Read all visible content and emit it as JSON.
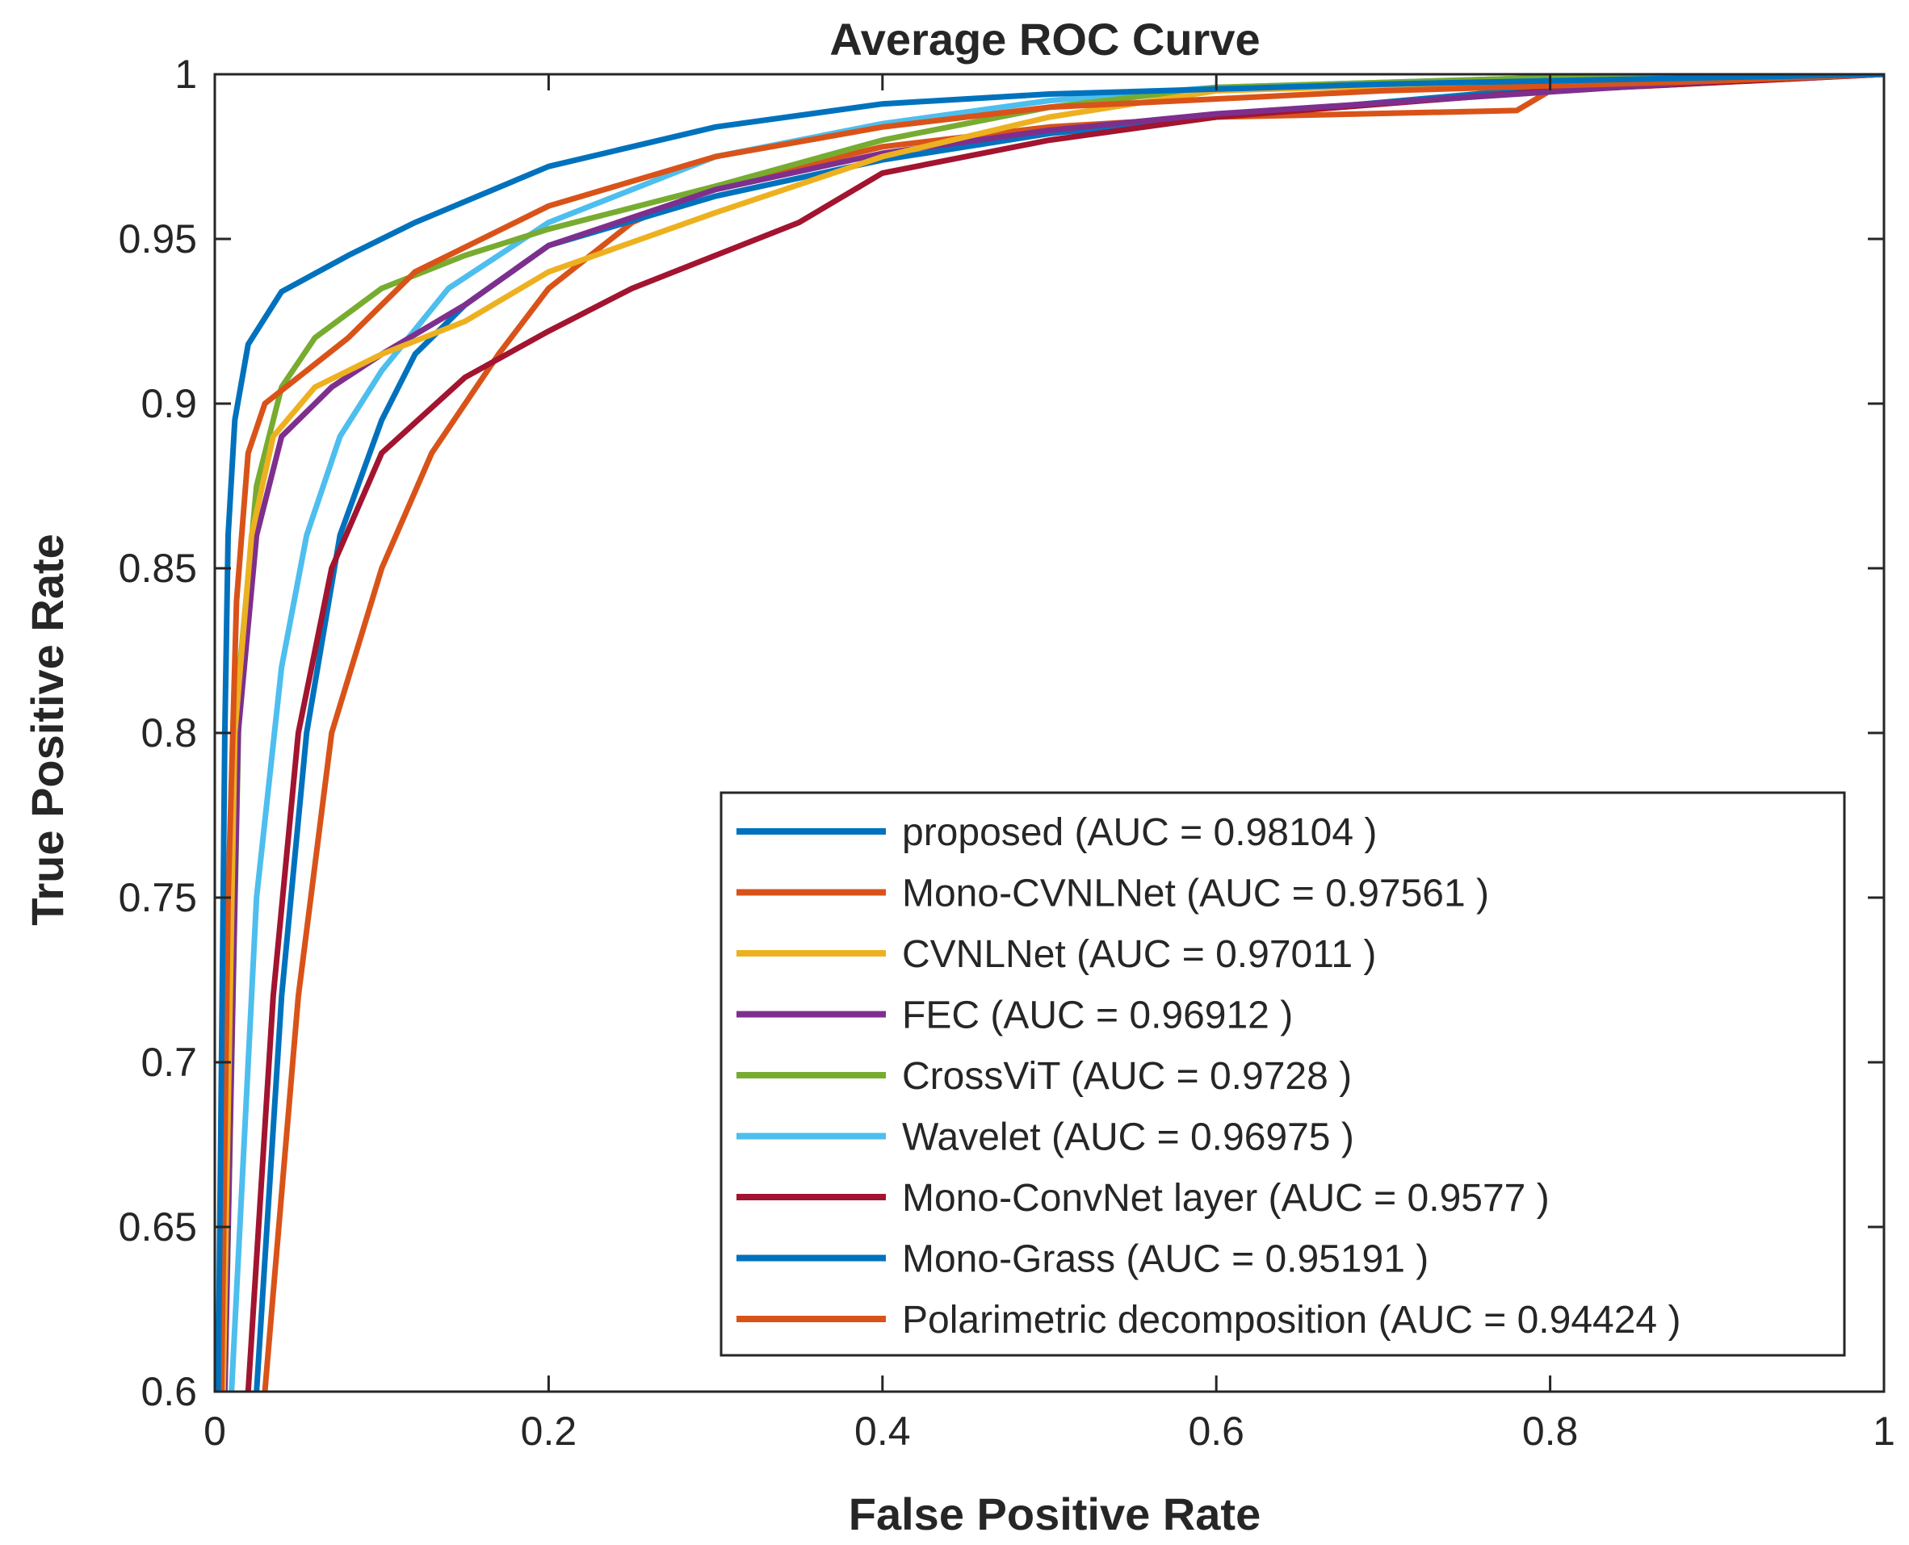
{
  "chart_data": {
    "type": "line",
    "title": "Average ROC Curve",
    "xlabel": "False Positive Rate",
    "ylabel": "True Positive Rate",
    "xlim": [
      0,
      1
    ],
    "ylim": [
      0.6,
      1
    ],
    "xticks": [
      "0",
      "0.2",
      "0.4",
      "0.6",
      "0.8",
      "1"
    ],
    "yticks": [
      "0.6",
      "0.65",
      "0.7",
      "0.75",
      "0.8",
      "0.85",
      "0.9",
      "0.95",
      "1"
    ],
    "grid": false,
    "box": true,
    "legend_position": "bottom-right",
    "series": [
      {
        "name": "proposed (AUC = 0.98104 )",
        "color": "#0072BD",
        "points": [
          [
            0.002,
            0.6
          ],
          [
            0.004,
            0.7
          ],
          [
            0.006,
            0.8
          ],
          [
            0.008,
            0.86
          ],
          [
            0.012,
            0.895
          ],
          [
            0.02,
            0.918
          ],
          [
            0.04,
            0.934
          ],
          [
            0.08,
            0.945
          ],
          [
            0.12,
            0.955
          ],
          [
            0.2,
            0.972
          ],
          [
            0.3,
            0.984
          ],
          [
            0.4,
            0.991
          ],
          [
            0.5,
            0.994
          ],
          [
            0.7,
            0.997
          ],
          [
            1.0,
            1.0
          ]
        ]
      },
      {
        "name": "Mono-CVNLNet (AUC = 0.97561 )",
        "color": "#D95319",
        "points": [
          [
            0.004,
            0.6
          ],
          [
            0.008,
            0.75
          ],
          [
            0.013,
            0.84
          ],
          [
            0.02,
            0.885
          ],
          [
            0.03,
            0.9
          ],
          [
            0.05,
            0.908
          ],
          [
            0.08,
            0.92
          ],
          [
            0.12,
            0.94
          ],
          [
            0.2,
            0.96
          ],
          [
            0.3,
            0.975
          ],
          [
            0.4,
            0.984
          ],
          [
            0.5,
            0.99
          ],
          [
            0.7,
            0.995
          ],
          [
            0.9,
            0.998
          ],
          [
            1.0,
            1.0
          ]
        ]
      },
      {
        "name": "CVNLNet (AUC = 0.97011 )",
        "color": "#EDB120",
        "points": [
          [
            0.005,
            0.6
          ],
          [
            0.012,
            0.8
          ],
          [
            0.022,
            0.86
          ],
          [
            0.035,
            0.89
          ],
          [
            0.06,
            0.905
          ],
          [
            0.1,
            0.915
          ],
          [
            0.15,
            0.925
          ],
          [
            0.2,
            0.94
          ],
          [
            0.3,
            0.958
          ],
          [
            0.4,
            0.975
          ],
          [
            0.5,
            0.987
          ],
          [
            0.6,
            0.995
          ],
          [
            0.8,
            0.998
          ],
          [
            1.0,
            1.0
          ]
        ]
      },
      {
        "name": "FEC (AUC = 0.96912 )",
        "color": "#7E2F8E",
        "points": [
          [
            0.006,
            0.6
          ],
          [
            0.014,
            0.8
          ],
          [
            0.025,
            0.86
          ],
          [
            0.04,
            0.89
          ],
          [
            0.07,
            0.905
          ],
          [
            0.1,
            0.915
          ],
          [
            0.15,
            0.93
          ],
          [
            0.2,
            0.948
          ],
          [
            0.3,
            0.965
          ],
          [
            0.4,
            0.976
          ],
          [
            0.5,
            0.983
          ],
          [
            0.6,
            0.988
          ],
          [
            0.75,
            0.993
          ],
          [
            0.9,
            0.998
          ],
          [
            1.0,
            1.0
          ]
        ]
      },
      {
        "name": "CrossViT (AUC = 0.9728 )",
        "color": "#77AC30",
        "points": [
          [
            0.006,
            0.6
          ],
          [
            0.015,
            0.82
          ],
          [
            0.025,
            0.875
          ],
          [
            0.04,
            0.905
          ],
          [
            0.06,
            0.92
          ],
          [
            0.1,
            0.935
          ],
          [
            0.15,
            0.945
          ],
          [
            0.2,
            0.953
          ],
          [
            0.3,
            0.966
          ],
          [
            0.4,
            0.98
          ],
          [
            0.5,
            0.99
          ],
          [
            0.6,
            0.996
          ],
          [
            0.8,
            0.999
          ],
          [
            1.0,
            1.0
          ]
        ]
      },
      {
        "name": "Wavelet (AUC = 0.96975 )",
        "color": "#4DBEEE",
        "points": [
          [
            0.01,
            0.6
          ],
          [
            0.025,
            0.75
          ],
          [
            0.04,
            0.82
          ],
          [
            0.055,
            0.86
          ],
          [
            0.075,
            0.89
          ],
          [
            0.1,
            0.91
          ],
          [
            0.14,
            0.935
          ],
          [
            0.2,
            0.955
          ],
          [
            0.3,
            0.975
          ],
          [
            0.4,
            0.985
          ],
          [
            0.5,
            0.992
          ],
          [
            0.6,
            0.996
          ],
          [
            0.8,
            0.999
          ],
          [
            1.0,
            1.0
          ]
        ]
      },
      {
        "name": "Mono-ConvNet layer (AUC = 0.9577 )",
        "color": "#A2142F",
        "points": [
          [
            0.02,
            0.6
          ],
          [
            0.035,
            0.72
          ],
          [
            0.05,
            0.8
          ],
          [
            0.07,
            0.85
          ],
          [
            0.1,
            0.885
          ],
          [
            0.15,
            0.908
          ],
          [
            0.2,
            0.922
          ],
          [
            0.25,
            0.935
          ],
          [
            0.3,
            0.945
          ],
          [
            0.35,
            0.955
          ],
          [
            0.4,
            0.97
          ],
          [
            0.5,
            0.98
          ],
          [
            0.6,
            0.987
          ],
          [
            0.8,
            0.995
          ],
          [
            1.0,
            1.0
          ]
        ]
      },
      {
        "name": "Mono-Grass (AUC = 0.95191 )",
        "color": "#0072BD",
        "points": [
          [
            0.025,
            0.6
          ],
          [
            0.04,
            0.72
          ],
          [
            0.055,
            0.8
          ],
          [
            0.075,
            0.86
          ],
          [
            0.1,
            0.895
          ],
          [
            0.12,
            0.915
          ],
          [
            0.15,
            0.93
          ],
          [
            0.2,
            0.948
          ],
          [
            0.3,
            0.963
          ],
          [
            0.4,
            0.974
          ],
          [
            0.5,
            0.982
          ],
          [
            0.6,
            0.987
          ],
          [
            0.8,
            0.996
          ],
          [
            1.0,
            1.0
          ]
        ]
      },
      {
        "name": "Polarimetric decomposition (AUC = 0.94424 )",
        "color": "#D95319",
        "points": [
          [
            0.03,
            0.6
          ],
          [
            0.05,
            0.72
          ],
          [
            0.07,
            0.8
          ],
          [
            0.1,
            0.85
          ],
          [
            0.13,
            0.885
          ],
          [
            0.17,
            0.915
          ],
          [
            0.2,
            0.935
          ],
          [
            0.25,
            0.955
          ],
          [
            0.3,
            0.966
          ],
          [
            0.4,
            0.978
          ],
          [
            0.5,
            0.984
          ],
          [
            0.6,
            0.987
          ],
          [
            0.78,
            0.989
          ],
          [
            0.8,
            0.995
          ],
          [
            1.0,
            1.0
          ]
        ]
      }
    ]
  }
}
